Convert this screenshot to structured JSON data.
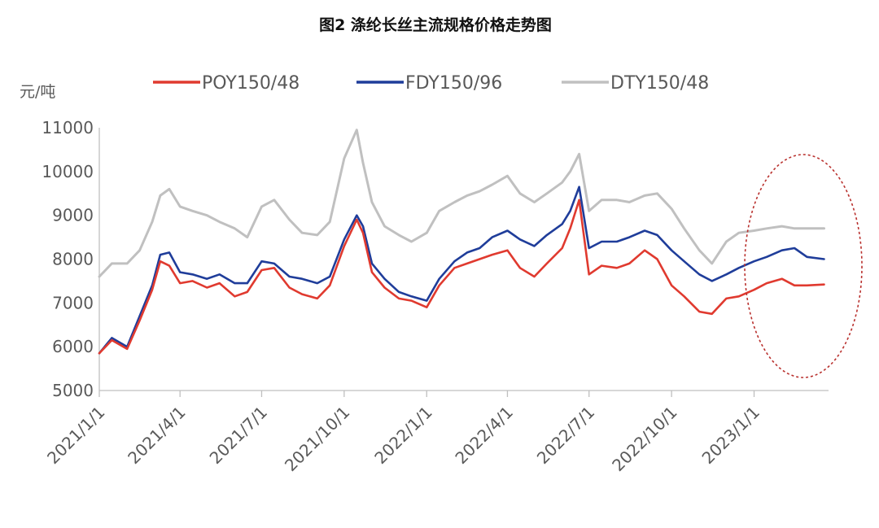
{
  "chart_data": {
    "type": "line",
    "title": "图2 涤纶长丝主流规格价格走势图",
    "ylabel": "元/吨",
    "ylim": [
      5000,
      11000
    ],
    "yticks": [
      "11000",
      "10000",
      "9000",
      "8000",
      "7000",
      "6000",
      "5000"
    ],
    "xticks": [
      "2021/1/1",
      "2021/4/1",
      "2021/7/1",
      "2021/10/1",
      "2022/1/1",
      "2022/4/1",
      "2022/7/1",
      "2022/10/1",
      "2023/1/1"
    ],
    "xlim": [
      "2021-01-01",
      "2023-03-25"
    ],
    "legend_position": "top",
    "grid": false,
    "highlight": "dotted ellipse around 2022-12 to 2023-03",
    "x": [
      "2021-01-01",
      "2021-01-15",
      "2021-02-01",
      "2021-02-15",
      "2021-03-01",
      "2021-03-10",
      "2021-03-20",
      "2021-04-01",
      "2021-04-15",
      "2021-05-01",
      "2021-05-15",
      "2021-06-01",
      "2021-06-15",
      "2021-07-01",
      "2021-07-15",
      "2021-08-01",
      "2021-08-15",
      "2021-09-01",
      "2021-09-15",
      "2021-10-01",
      "2021-10-15",
      "2021-10-22",
      "2021-11-01",
      "2021-11-15",
      "2021-12-01",
      "2021-12-15",
      "2022-01-01",
      "2022-01-15",
      "2022-02-01",
      "2022-02-15",
      "2022-03-01",
      "2022-03-15",
      "2022-04-01",
      "2022-04-15",
      "2022-05-01",
      "2022-05-15",
      "2022-06-01",
      "2022-06-10",
      "2022-06-20",
      "2022-07-01",
      "2022-07-15",
      "2022-08-01",
      "2022-08-15",
      "2022-09-01",
      "2022-09-15",
      "2022-10-01",
      "2022-10-15",
      "2022-11-01",
      "2022-11-15",
      "2022-12-01",
      "2022-12-15",
      "2023-01-01",
      "2023-01-15",
      "2023-02-01",
      "2023-02-15",
      "2023-03-01",
      "2023-03-20"
    ],
    "series": [
      {
        "name": "POY150/48",
        "color": "#e03a2f",
        "values": [
          5850,
          6150,
          5950,
          6600,
          7300,
          7950,
          7850,
          7450,
          7500,
          7350,
          7450,
          7150,
          7250,
          7750,
          7800,
          7350,
          7200,
          7100,
          7400,
          8300,
          8900,
          8600,
          7700,
          7350,
          7100,
          7050,
          6900,
          7400,
          7800,
          7900,
          8000,
          8100,
          8200,
          7800,
          7600,
          7900,
          8250,
          8700,
          9350,
          7650,
          7850,
          7800,
          7900,
          8200,
          8000,
          7400,
          7150,
          6800,
          6750,
          7100,
          7150,
          7300,
          7450,
          7550,
          7400,
          7400,
          7420
        ]
      },
      {
        "name": "FDY150/96",
        "color": "#1f3d9a",
        "values": [
          5850,
          6200,
          6000,
          6700,
          7400,
          8100,
          8150,
          7700,
          7650,
          7550,
          7650,
          7450,
          7450,
          7950,
          7900,
          7600,
          7550,
          7450,
          7600,
          8450,
          9000,
          8750,
          7900,
          7550,
          7250,
          7150,
          7050,
          7550,
          7950,
          8150,
          8250,
          8500,
          8650,
          8450,
          8300,
          8550,
          8800,
          9100,
          9650,
          8250,
          8400,
          8400,
          8500,
          8650,
          8550,
          8200,
          7950,
          7650,
          7500,
          7650,
          7800,
          7950,
          8050,
          8200,
          8250,
          8050,
          8000
        ]
      },
      {
        "name": "DTY150/48",
        "color": "#c0c0c0",
        "values": [
          7600,
          7900,
          7900,
          8200,
          8850,
          9450,
          9600,
          9200,
          9100,
          9000,
          8850,
          8700,
          8500,
          9200,
          9350,
          8900,
          8600,
          8550,
          8850,
          10300,
          10950,
          10200,
          9300,
          8750,
          8550,
          8400,
          8600,
          9100,
          9300,
          9450,
          9550,
          9700,
          9900,
          9500,
          9300,
          9500,
          9750,
          10000,
          10400,
          9100,
          9350,
          9350,
          9300,
          9450,
          9500,
          9150,
          8700,
          8200,
          7900,
          8400,
          8600,
          8650,
          8700,
          8750,
          8700,
          8700,
          8700
        ]
      }
    ]
  }
}
